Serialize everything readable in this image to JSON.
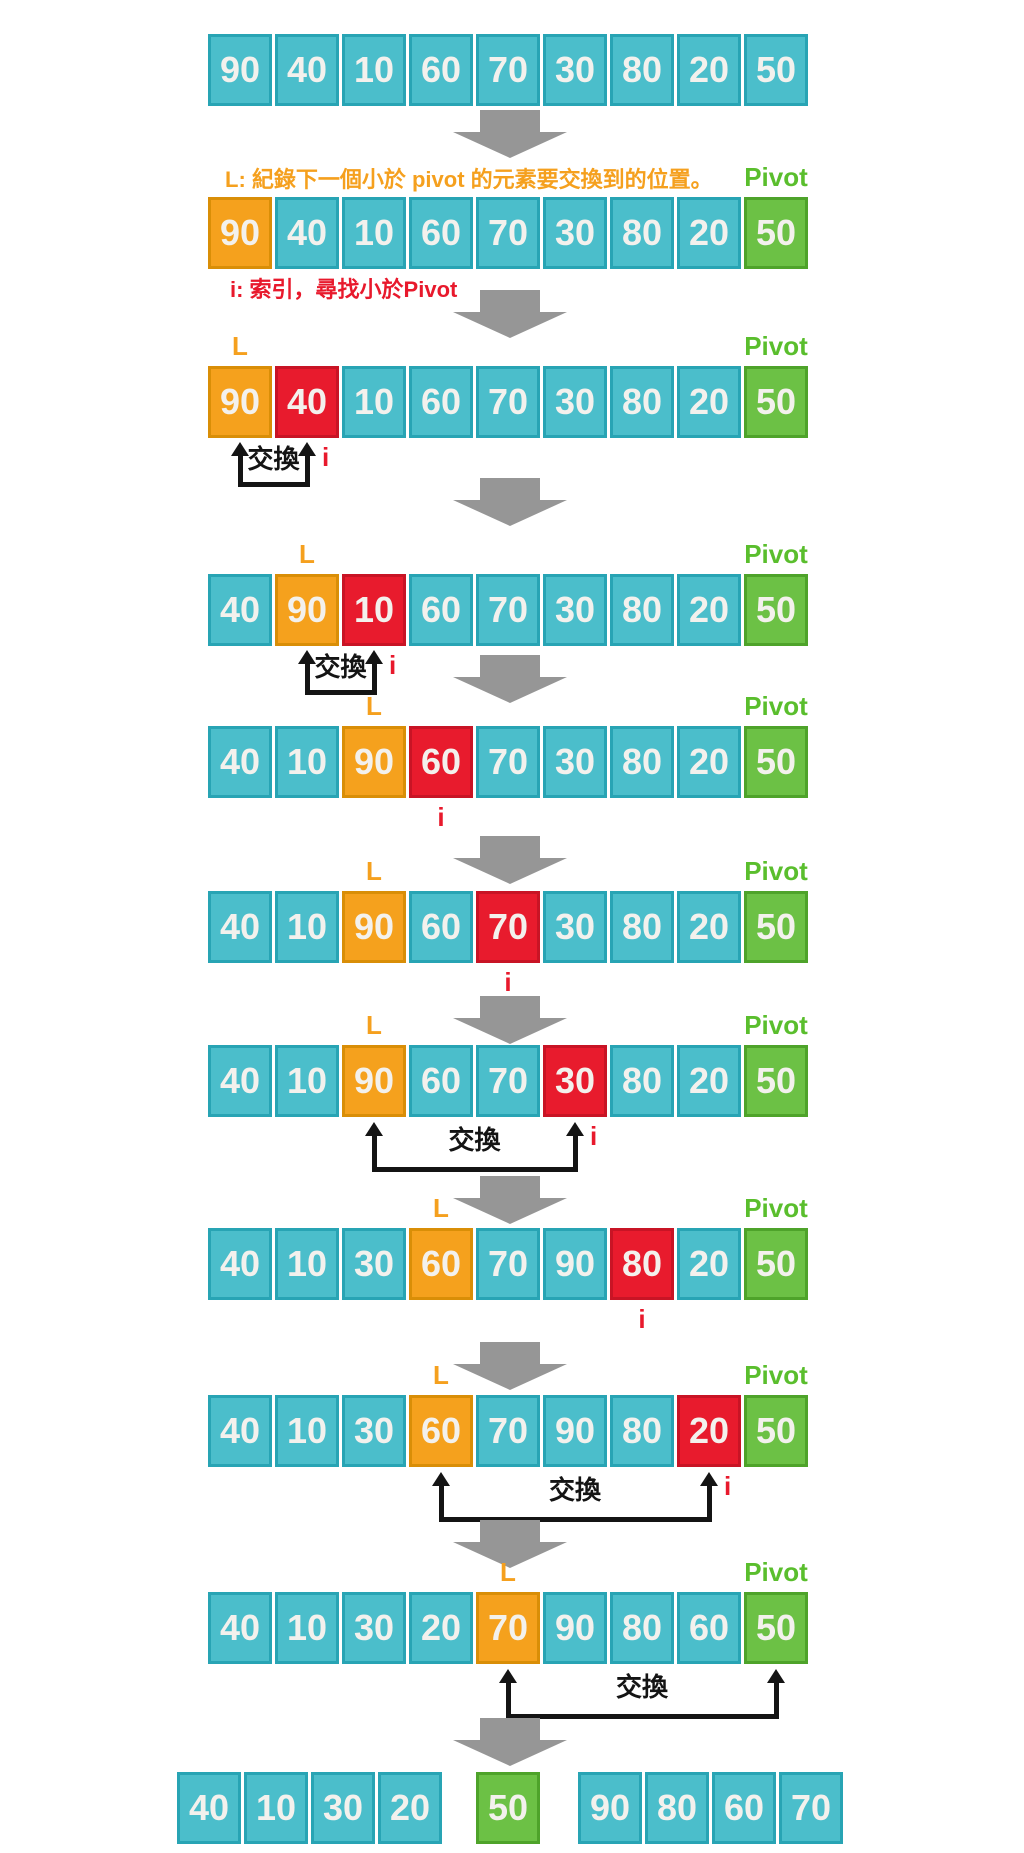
{
  "labels": {
    "l": "L",
    "pivot": "Pivot",
    "swap": "交換",
    "i": "i"
  },
  "annotations": {
    "l_definition": "L: 紀錄下一個小於 pivot 的元素要交換到的位置。",
    "i_definition": "i: 索引，尋找小於Pivot"
  },
  "colors": {
    "cell_cyan": "#4BBECB",
    "cell_cyan_border": "#28A4B4",
    "cell_orange": "#F5A11D",
    "cell_orange_border": "#D98E07",
    "cell_red": "#E81B2D",
    "cell_red_border": "#C81425",
    "cell_green": "#6CC145",
    "cell_green_border": "#4EA32A",
    "label_orange": "#F5A01E",
    "label_green": "#5ABE2D",
    "label_red": "#E8192C",
    "arrow_gray": "#969696",
    "swap_black": "#141414",
    "cell_text": "#F3F1ED"
  },
  "steps": [
    {
      "cells": [
        {
          "value": "90",
          "state": "plain"
        },
        {
          "value": "40",
          "state": "plain"
        },
        {
          "value": "10",
          "state": "plain"
        },
        {
          "value": "60",
          "state": "plain"
        },
        {
          "value": "70",
          "state": "plain"
        },
        {
          "value": "30",
          "state": "plain"
        },
        {
          "value": "80",
          "state": "plain"
        },
        {
          "value": "20",
          "state": "plain"
        },
        {
          "value": "50",
          "state": "plain"
        }
      ]
    },
    {
      "header": true,
      "footer": true,
      "show_pivot": true,
      "cells": [
        {
          "value": "90",
          "state": "store"
        },
        {
          "value": "40",
          "state": "plain"
        },
        {
          "value": "10",
          "state": "plain"
        },
        {
          "value": "60",
          "state": "plain"
        },
        {
          "value": "70",
          "state": "plain"
        },
        {
          "value": "30",
          "state": "plain"
        },
        {
          "value": "80",
          "state": "plain"
        },
        {
          "value": "20",
          "state": "plain"
        },
        {
          "value": "50",
          "state": "pivot"
        }
      ]
    },
    {
      "l_index": 0,
      "show_pivot": true,
      "swap": {
        "from": 0,
        "to": 1,
        "show_i": true
      },
      "cells": [
        {
          "value": "90",
          "state": "store"
        },
        {
          "value": "40",
          "state": "scan"
        },
        {
          "value": "10",
          "state": "plain"
        },
        {
          "value": "60",
          "state": "plain"
        },
        {
          "value": "70",
          "state": "plain"
        },
        {
          "value": "30",
          "state": "plain"
        },
        {
          "value": "80",
          "state": "plain"
        },
        {
          "value": "20",
          "state": "plain"
        },
        {
          "value": "50",
          "state": "pivot"
        }
      ]
    },
    {
      "l_index": 1,
      "show_pivot": true,
      "swap": {
        "from": 1,
        "to": 2,
        "show_i": true
      },
      "cells": [
        {
          "value": "40",
          "state": "plain"
        },
        {
          "value": "90",
          "state": "store"
        },
        {
          "value": "10",
          "state": "scan"
        },
        {
          "value": "60",
          "state": "plain"
        },
        {
          "value": "70",
          "state": "plain"
        },
        {
          "value": "30",
          "state": "plain"
        },
        {
          "value": "80",
          "state": "plain"
        },
        {
          "value": "20",
          "state": "plain"
        },
        {
          "value": "50",
          "state": "pivot"
        }
      ]
    },
    {
      "l_index": 2,
      "show_pivot": true,
      "i_below": 3,
      "cells": [
        {
          "value": "40",
          "state": "plain"
        },
        {
          "value": "10",
          "state": "plain"
        },
        {
          "value": "90",
          "state": "store"
        },
        {
          "value": "60",
          "state": "scan"
        },
        {
          "value": "70",
          "state": "plain"
        },
        {
          "value": "30",
          "state": "plain"
        },
        {
          "value": "80",
          "state": "plain"
        },
        {
          "value": "20",
          "state": "plain"
        },
        {
          "value": "50",
          "state": "pivot"
        }
      ]
    },
    {
      "l_index": 2,
      "show_pivot": true,
      "i_below": 4,
      "cells": [
        {
          "value": "40",
          "state": "plain"
        },
        {
          "value": "10",
          "state": "plain"
        },
        {
          "value": "90",
          "state": "store"
        },
        {
          "value": "60",
          "state": "plain"
        },
        {
          "value": "70",
          "state": "scan"
        },
        {
          "value": "30",
          "state": "plain"
        },
        {
          "value": "80",
          "state": "plain"
        },
        {
          "value": "20",
          "state": "plain"
        },
        {
          "value": "50",
          "state": "pivot"
        }
      ]
    },
    {
      "l_index": 2,
      "show_pivot": true,
      "swap": {
        "from": 2,
        "to": 5,
        "show_i": true
      },
      "cells": [
        {
          "value": "40",
          "state": "plain"
        },
        {
          "value": "10",
          "state": "plain"
        },
        {
          "value": "90",
          "state": "store"
        },
        {
          "value": "60",
          "state": "plain"
        },
        {
          "value": "70",
          "state": "plain"
        },
        {
          "value": "30",
          "state": "scan"
        },
        {
          "value": "80",
          "state": "plain"
        },
        {
          "value": "20",
          "state": "plain"
        },
        {
          "value": "50",
          "state": "pivot"
        }
      ]
    },
    {
      "l_index": 3,
      "show_pivot": true,
      "i_below": 6,
      "cells": [
        {
          "value": "40",
          "state": "plain"
        },
        {
          "value": "10",
          "state": "plain"
        },
        {
          "value": "30",
          "state": "plain"
        },
        {
          "value": "60",
          "state": "store"
        },
        {
          "value": "70",
          "state": "plain"
        },
        {
          "value": "90",
          "state": "plain"
        },
        {
          "value": "80",
          "state": "scan"
        },
        {
          "value": "20",
          "state": "plain"
        },
        {
          "value": "50",
          "state": "pivot"
        }
      ]
    },
    {
      "l_index": 3,
      "show_pivot": true,
      "swap": {
        "from": 3,
        "to": 7,
        "show_i": true
      },
      "cells": [
        {
          "value": "40",
          "state": "plain"
        },
        {
          "value": "10",
          "state": "plain"
        },
        {
          "value": "30",
          "state": "plain"
        },
        {
          "value": "60",
          "state": "store"
        },
        {
          "value": "70",
          "state": "plain"
        },
        {
          "value": "90",
          "state": "plain"
        },
        {
          "value": "80",
          "state": "plain"
        },
        {
          "value": "20",
          "state": "scan"
        },
        {
          "value": "50",
          "state": "pivot"
        }
      ]
    },
    {
      "l_index": 4,
      "show_pivot": true,
      "swap": {
        "from": 4,
        "to": 8,
        "show_i": false
      },
      "cells": [
        {
          "value": "40",
          "state": "plain"
        },
        {
          "value": "10",
          "state": "plain"
        },
        {
          "value": "30",
          "state": "plain"
        },
        {
          "value": "20",
          "state": "plain"
        },
        {
          "value": "70",
          "state": "store"
        },
        {
          "value": "90",
          "state": "plain"
        },
        {
          "value": "80",
          "state": "plain"
        },
        {
          "value": "60",
          "state": "plain"
        },
        {
          "value": "50",
          "state": "pivot"
        }
      ]
    }
  ],
  "final_groups": [
    {
      "state": "plain",
      "cells": [
        "40",
        "10",
        "30",
        "20"
      ]
    },
    {
      "state": "pivot",
      "cells": [
        "50"
      ]
    },
    {
      "state": "plain",
      "cells": [
        "90",
        "80",
        "60",
        "70"
      ]
    }
  ]
}
